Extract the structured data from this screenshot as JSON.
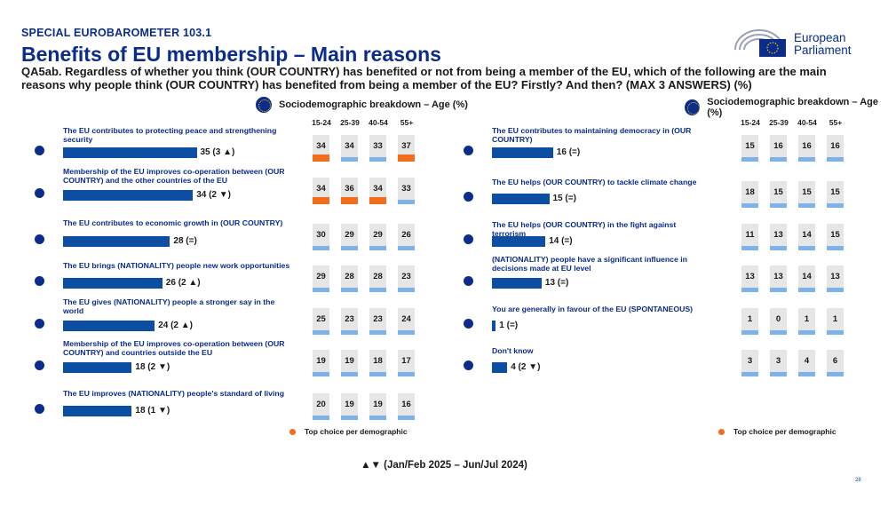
{
  "kicker": "SPECIAL EUROBAROMETER 103.1",
  "title": "Benefits of EU membership – Main reasons",
  "question": "QA5ab. Regardless of whether you think (OUR COUNTRY) has benefited or not from being a member of the EU, which of the following are the main reasons why people think (OUR COUNTRY) has benefited from being a member of the EU? Firstly? And then? (MAX 3 ANSWERS) (%)",
  "logo": {
    "line1": "European",
    "line2": "Parliament"
  },
  "breakdown_label": "Sociodemographic breakdown – Age (%)",
  "age_groups": [
    "15-24",
    "25-39",
    "40-54",
    "55+"
  ],
  "colors": {
    "brand": "#0b2c8a",
    "bar": "#0b4ea2",
    "cell_bar": "#7fb2e8",
    "top_choice": "#ef6d1b"
  },
  "left_items": [
    {
      "label": "The EU contributes to protecting peace and strengthening security",
      "value": 35,
      "change": "35 (3 ▲)",
      "ages": [
        34,
        34,
        33,
        37
      ],
      "top": [
        true,
        false,
        false,
        true
      ]
    },
    {
      "label": "Membership of the EU improves co-operation between (OUR COUNTRY) and the other countries of the EU",
      "value": 34,
      "change": "34 (2 ▼)",
      "ages": [
        34,
        36,
        34,
        33
      ],
      "top": [
        true,
        true,
        true,
        false
      ]
    },
    {
      "label": "The EU contributes to economic growth in (OUR COUNTRY)",
      "value": 28,
      "change": "28 (=)",
      "ages": [
        30,
        29,
        29,
        26
      ],
      "top": [
        false,
        false,
        false,
        false
      ]
    },
    {
      "label": "The EU brings (NATIONALITY) people new work opportunities",
      "value": 26,
      "change": "26 (2 ▲)",
      "ages": [
        29,
        28,
        28,
        23
      ],
      "top": [
        false,
        false,
        false,
        false
      ]
    },
    {
      "label": "The EU gives (NATIONALITY) people a stronger say in the world",
      "value": 24,
      "change": "24 (2 ▲)",
      "ages": [
        25,
        23,
        23,
        24
      ],
      "top": [
        false,
        false,
        false,
        false
      ]
    },
    {
      "label": "Membership of the EU improves co-operation between (OUR COUNTRY) and countries outside the EU",
      "value": 18,
      "change": "18 (2 ▼)",
      "ages": [
        19,
        19,
        18,
        17
      ],
      "top": [
        false,
        false,
        false,
        false
      ]
    },
    {
      "label": "The EU improves (NATIONALITY) people's standard of living",
      "value": 18,
      "change": "18 (1 ▼)",
      "ages": [
        20,
        19,
        19,
        16
      ],
      "top": [
        false,
        false,
        false,
        false
      ]
    }
  ],
  "right_items": [
    {
      "label": "The EU contributes to maintaining democracy in (OUR COUNTRY)",
      "value": 16,
      "change": "16 (=)",
      "ages": [
        15,
        16,
        16,
        16
      ],
      "top": [
        false,
        false,
        false,
        false
      ]
    },
    {
      "label": "The EU helps (OUR COUNTRY) to tackle climate change",
      "value": 15,
      "change": "15 (=)",
      "ages": [
        18,
        15,
        15,
        15
      ],
      "top": [
        false,
        false,
        false,
        false
      ]
    },
    {
      "label": "The EU helps (OUR COUNTRY) in the fight against terrorism",
      "value": 14,
      "change": "14 (=)",
      "ages": [
        11,
        13,
        14,
        15
      ],
      "top": [
        false,
        false,
        false,
        false
      ]
    },
    {
      "label": "(NATIONALITY) people have a significant influence in decisions made at EU level",
      "value": 13,
      "change": "13 (=)",
      "ages": [
        13,
        13,
        14,
        13
      ],
      "top": [
        false,
        false,
        false,
        false
      ]
    },
    {
      "label": "You are generally in favour of the EU (SPONTANEOUS)",
      "value": 1,
      "change": "1 (=)",
      "ages": [
        1,
        0,
        1,
        1
      ],
      "top": [
        false,
        false,
        false,
        false
      ]
    },
    {
      "label": "Don't know",
      "value": 4,
      "change": "4 (2 ▼)",
      "ages": [
        3,
        3,
        4,
        6
      ],
      "top": [
        false,
        false,
        false,
        false
      ]
    }
  ],
  "legend_label": "Top choice per demographic",
  "footnote": "▲▼ (Jan/Feb 2025 – Jun/Jul 2024)",
  "page_number": "28"
}
